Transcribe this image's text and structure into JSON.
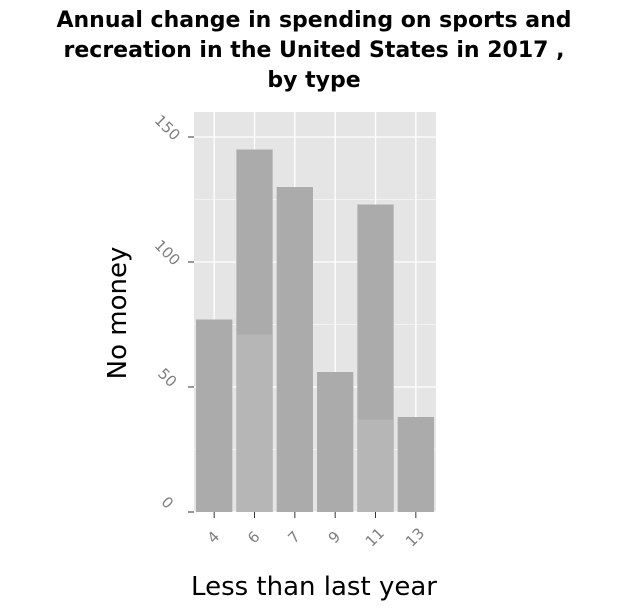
{
  "chart_data": {
    "type": "bar",
    "title_lines": [
      "Annual change in spending on sports and",
      "recreation in the United States in 2017 ,",
      "by type"
    ],
    "xlabel": "Less than last year",
    "ylabel": "No money",
    "categories": [
      "4",
      "6",
      "7",
      "9",
      "11",
      "13"
    ],
    "bars": [
      {
        "category": "4",
        "value": 77,
        "split": null
      },
      {
        "category": "6",
        "value": 145,
        "split": 71
      },
      {
        "category": "7",
        "value": 130,
        "split": null
      },
      {
        "category": "9",
        "value": 56,
        "split": null
      },
      {
        "category": "11",
        "value": 123,
        "split": 37
      },
      {
        "category": "13",
        "value": 38,
        "split": null
      }
    ],
    "y_ticks": [
      "0",
      "50",
      "100",
      "150"
    ],
    "ylim": [
      0,
      150
    ],
    "grid": true,
    "legend": "none",
    "colors": {
      "panel": "#e5e5e5",
      "bar": "#ababab",
      "bar_split": "#b6b6b6",
      "grid": "#ffffff",
      "tick_text": "#7f7f7f"
    }
  }
}
